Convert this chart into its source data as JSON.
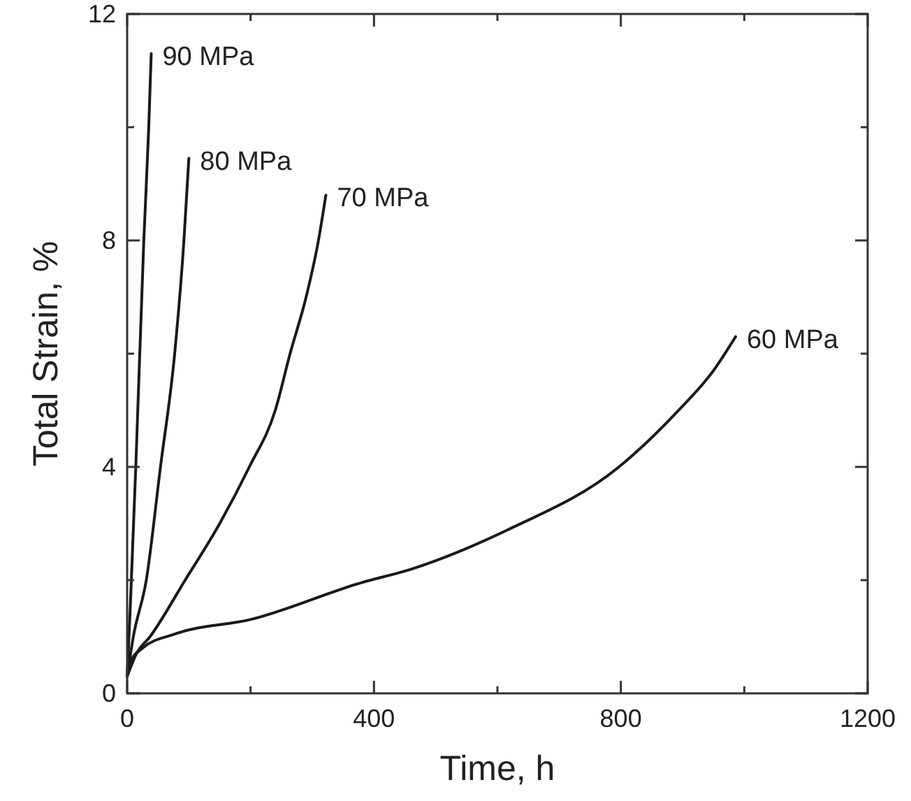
{
  "chart_data": {
    "type": "line",
    "xlabel": "Time, h",
    "ylabel": "Total Strain, %",
    "xlim": [
      0,
      1200
    ],
    "ylim": [
      0,
      12
    ],
    "xticks": [
      0,
      {
        "value": 200,
        "label": null
      },
      400,
      {
        "value": 600,
        "label": null
      },
      800,
      {
        "value": 1000,
        "label": null
      },
      1200
    ],
    "yticks": [
      0,
      {
        "value": 2,
        "label": null
      },
      4,
      {
        "value": 6,
        "label": null
      },
      8,
      {
        "value": 10,
        "label": null
      },
      12
    ],
    "grid": false,
    "marker": "none",
    "line_style": "solid",
    "series": [
      {
        "name": "90 MPa",
        "color": "#1a1a1a",
        "x": [
          0,
          5,
          14,
          27,
          35,
          39
        ],
        "values": [
          0.3,
          1.5,
          4,
          8,
          10,
          11.3
        ]
      },
      {
        "name": "80 MPa",
        "color": "#1a1a1a",
        "x": [
          0,
          10,
          31,
          54,
          77,
          92,
          100
        ],
        "values": [
          0.3,
          1.0,
          2,
          4,
          6,
          8,
          9.45
        ]
      },
      {
        "name": "70 MPa",
        "color": "#1a1a1a",
        "x": [
          0,
          15,
          37,
          94,
          150,
          198,
          240,
          264,
          290,
          310,
          322
        ],
        "values": [
          0.3,
          0.7,
          1,
          2,
          3,
          4,
          5,
          6,
          7,
          8,
          8.8
        ]
      },
      {
        "name": "60 MPa",
        "color": "#1a1a1a",
        "x": [
          0,
          5,
          25,
          78,
          202,
          378,
          462,
          615,
          797,
          891,
          950,
          986
        ],
        "values": [
          0.3,
          0.55,
          0.8,
          1.05,
          1.31,
          1.95,
          2.2,
          2.88,
          4.0,
          4.97,
          5.7,
          6.3
        ]
      }
    ]
  }
}
